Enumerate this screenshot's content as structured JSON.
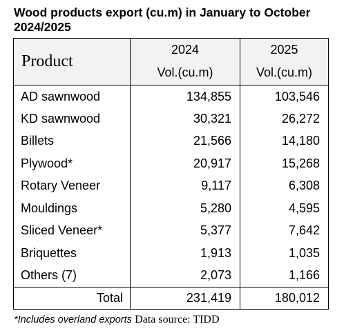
{
  "title": "Wood products export (cu.m) in January to October 2024/2025",
  "table": {
    "header": {
      "product": "Product",
      "year_2024": "2024",
      "year_2025": "2025",
      "unit_2024": "Vol.(cu.m)",
      "unit_2025": "Vol.(cu.m)"
    },
    "rows": [
      {
        "product": "AD sawnwood",
        "v2024": "134,855",
        "v2025": "103,546"
      },
      {
        "product": "KD sawnwood",
        "v2024": "30,321",
        "v2025": "26,272"
      },
      {
        "product": "Billets",
        "v2024": "21,566",
        "v2025": "14,180"
      },
      {
        "product": "Plywood*",
        "v2024": "20,917",
        "v2025": "15,268"
      },
      {
        "product": "Rotary Veneer",
        "v2024": "9,117",
        "v2025": "6,308"
      },
      {
        "product": "Mouldings",
        "v2024": "5,280",
        "v2025": "4,595"
      },
      {
        "product": "Sliced Veneer*",
        "v2024": "5,377",
        "v2025": "7,642"
      },
      {
        "product": "Briquettes",
        "v2024": "1,913",
        "v2025": "1,035"
      },
      {
        "product": "Others (7)",
        "v2024": "2,073",
        "v2025": "1,166"
      }
    ],
    "total": {
      "label": "Total",
      "v2024": "231,419",
      "v2025": "180,012"
    }
  },
  "footnote": {
    "note": "*Includes overland exports",
    "source": "Data source: TIDD"
  }
}
